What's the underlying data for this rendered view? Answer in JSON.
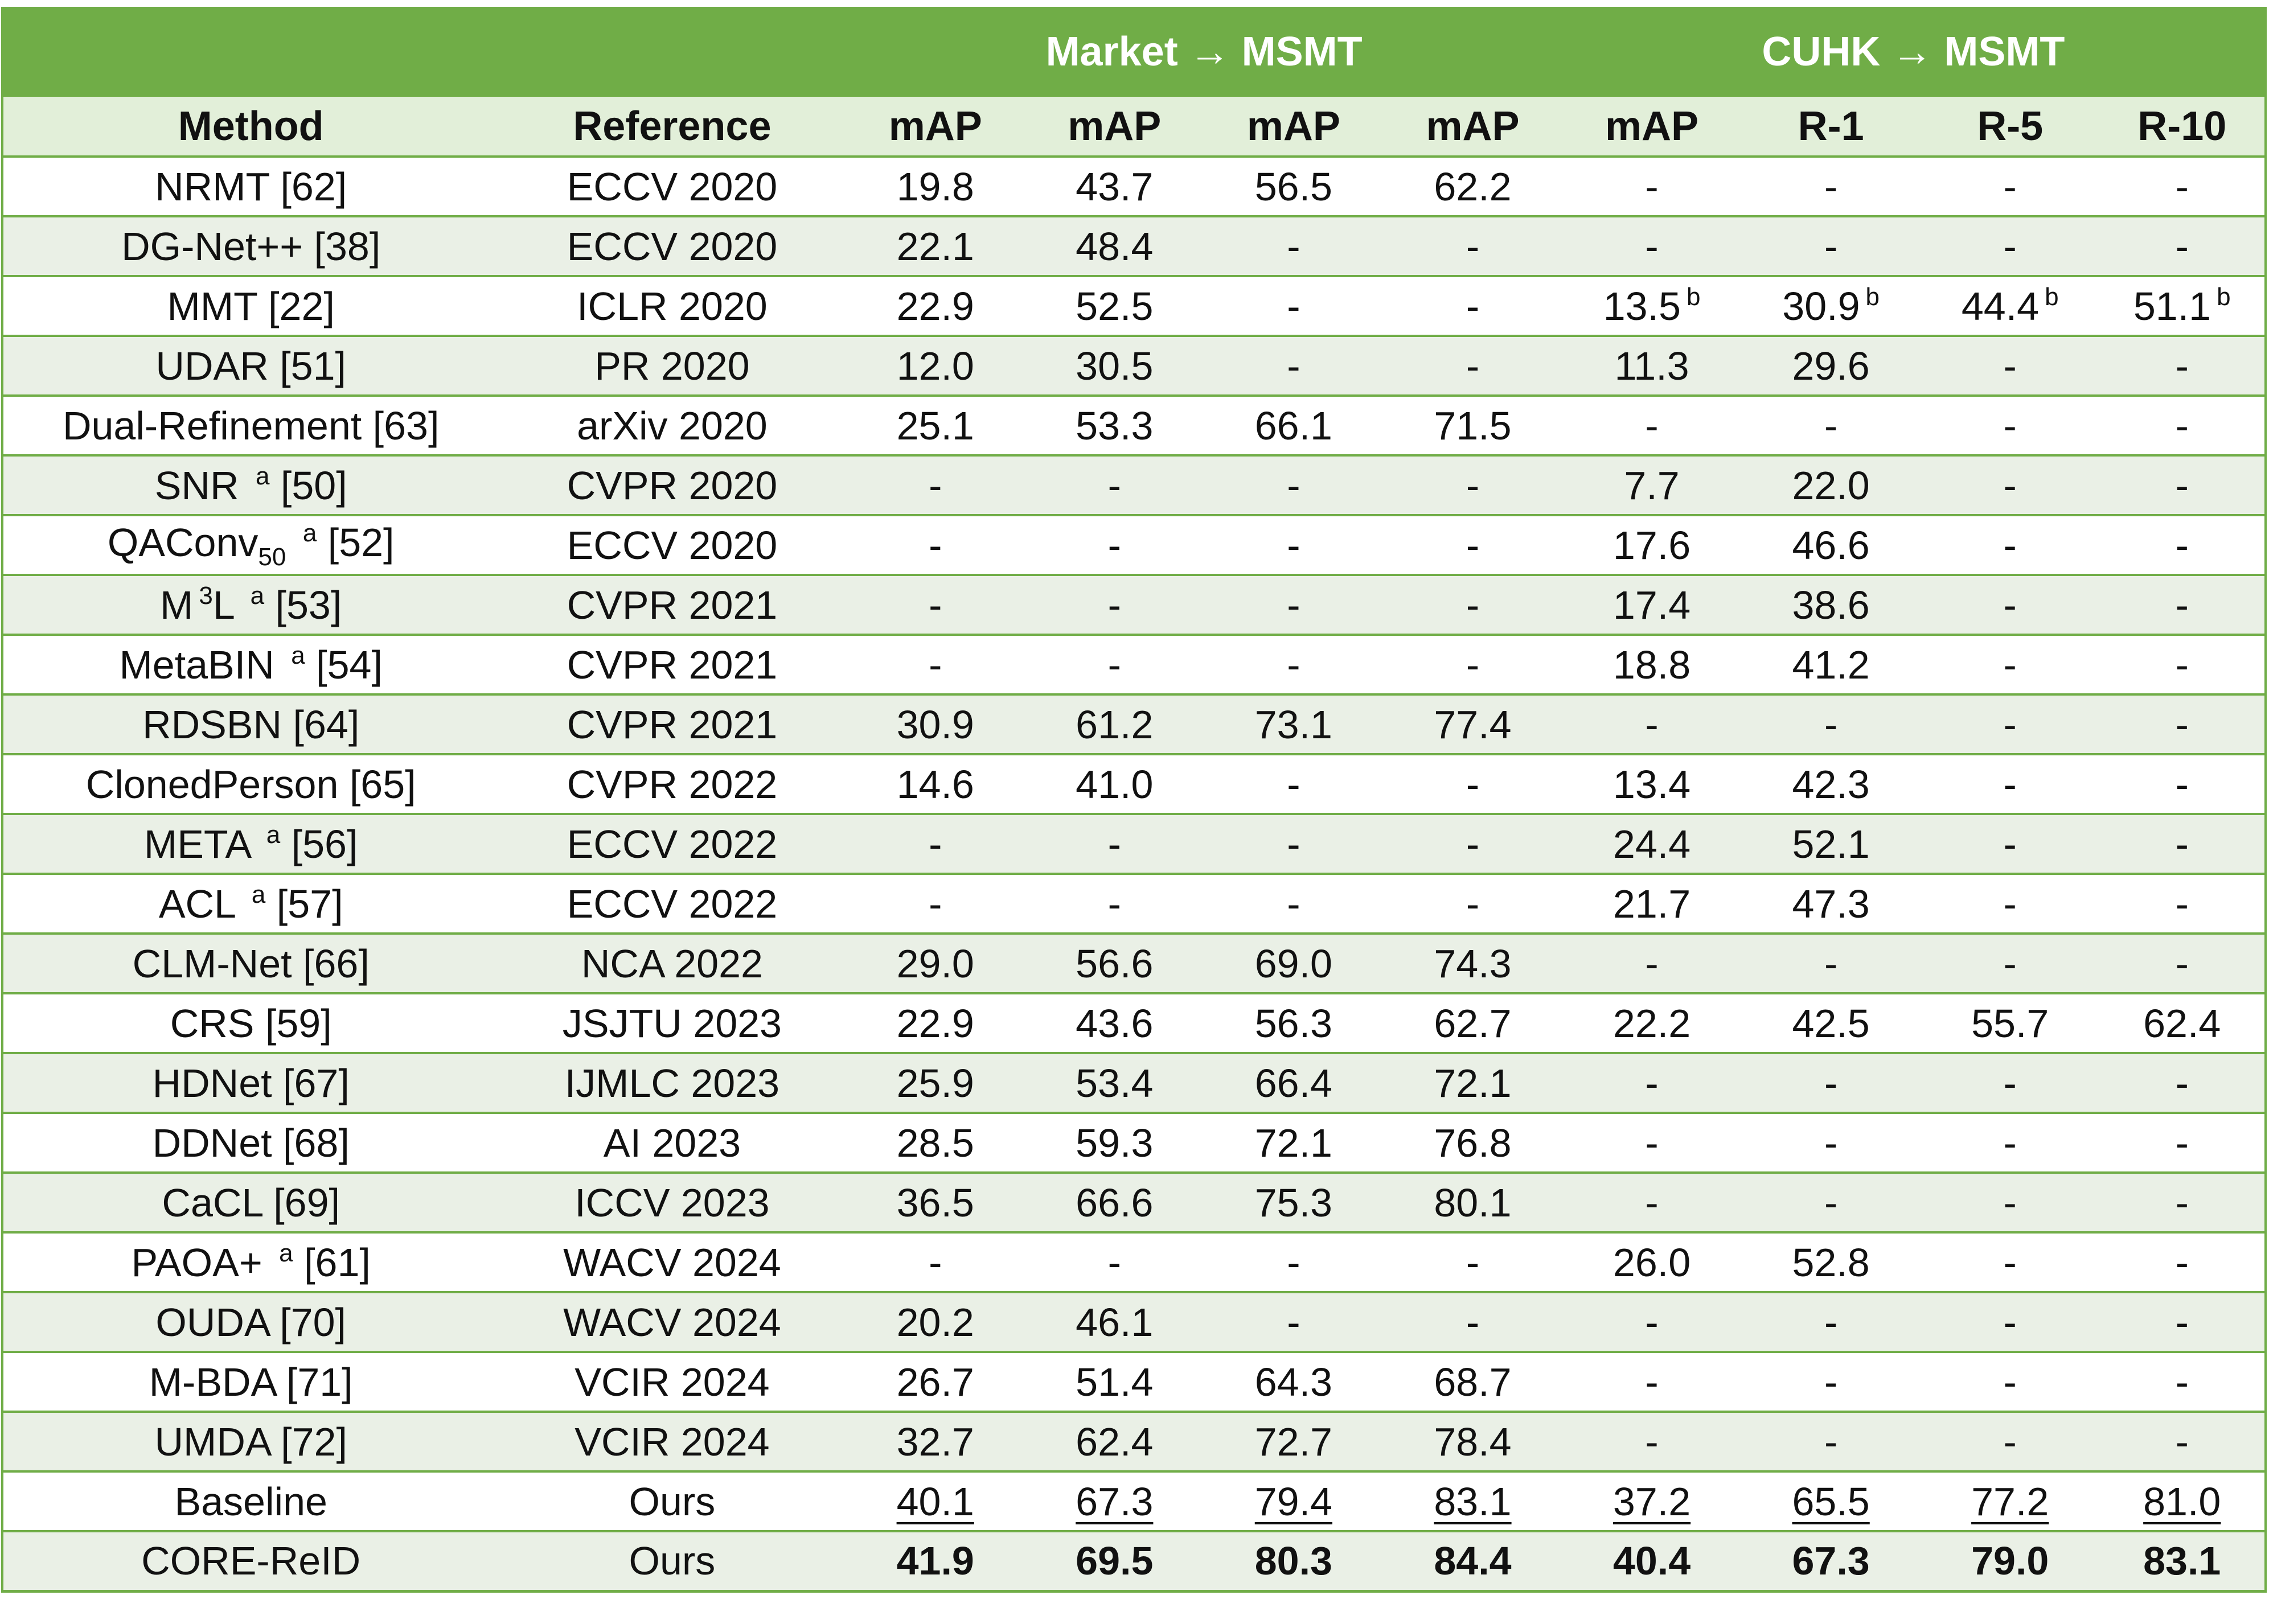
{
  "group_headers": {
    "market_msmt": "Market → MSMT",
    "cuhk_msmt": "CUHK → MSMT"
  },
  "column_headers": [
    "Method",
    "Reference",
    "mAP",
    "mAP",
    "mAP",
    "mAP",
    "mAP",
    "R-1",
    "R-5",
    "R-10"
  ],
  "rows": [
    {
      "method": [
        {
          "t": "NRMT [62]"
        }
      ],
      "reference": "ECCV 2020",
      "values": [
        "19.8",
        "43.7",
        "56.5",
        "62.2",
        "-",
        "-",
        "-",
        "-"
      ]
    },
    {
      "method": [
        {
          "t": "DG-Net++ [38]"
        }
      ],
      "reference": "ECCV 2020",
      "values": [
        "22.1",
        "48.4",
        "-",
        "-",
        "-",
        "-",
        "-",
        "-"
      ]
    },
    {
      "method": [
        {
          "t": "MMT [22]"
        }
      ],
      "reference": "ICLR 2020",
      "values": [
        "22.9",
        "52.5",
        "-",
        "-",
        "13.5",
        "30.9",
        "44.4",
        "51.1"
      ],
      "sups": [
        "",
        "",
        "",
        "",
        "b",
        "b",
        "b",
        "b"
      ]
    },
    {
      "method": [
        {
          "t": "UDAR [51]"
        }
      ],
      "reference": "PR 2020",
      "values": [
        "12.0",
        "30.5",
        "-",
        "-",
        "11.3",
        "29.6",
        "-",
        "-"
      ]
    },
    {
      "method": [
        {
          "t": "Dual-Refinement [63]"
        }
      ],
      "reference": "arXiv 2020",
      "values": [
        "25.1",
        "53.3",
        "66.1",
        "71.5",
        "-",
        "-",
        "-",
        "-"
      ]
    },
    {
      "method": [
        {
          "t": "SNR "
        },
        {
          "t": "a",
          "s": "sup"
        },
        {
          "t": " [50]"
        }
      ],
      "reference": "CVPR 2020",
      "values": [
        "-",
        "-",
        "-",
        "-",
        "7.7",
        "22.0",
        "-",
        "-"
      ]
    },
    {
      "method": [
        {
          "t": "QAConv"
        },
        {
          "t": "50",
          "s": "sub"
        },
        {
          "t": " "
        },
        {
          "t": "a",
          "s": "sup"
        },
        {
          "t": " [52]"
        }
      ],
      "reference": "ECCV 2020",
      "values": [
        "-",
        "-",
        "-",
        "-",
        "17.6",
        "46.6",
        "-",
        "-"
      ]
    },
    {
      "method": [
        {
          "t": "M"
        },
        {
          "t": "3",
          "s": "sup"
        },
        {
          "t": "L "
        },
        {
          "t": "a",
          "s": "sup"
        },
        {
          "t": " [53]"
        }
      ],
      "reference": "CVPR 2021",
      "values": [
        "-",
        "-",
        "-",
        "-",
        "17.4",
        "38.6",
        "-",
        "-"
      ]
    },
    {
      "method": [
        {
          "t": "MetaBIN "
        },
        {
          "t": "a",
          "s": "sup"
        },
        {
          "t": " [54]"
        }
      ],
      "reference": "CVPR 2021",
      "values": [
        "-",
        "-",
        "-",
        "-",
        "18.8",
        "41.2",
        "-",
        "-"
      ]
    },
    {
      "method": [
        {
          "t": "RDSBN [64]"
        }
      ],
      "reference": "CVPR 2021",
      "values": [
        "30.9",
        "61.2",
        "73.1",
        "77.4",
        "-",
        "-",
        "-",
        "-"
      ]
    },
    {
      "method": [
        {
          "t": "ClonedPerson [65]"
        }
      ],
      "reference": "CVPR 2022",
      "values": [
        "14.6",
        "41.0",
        "-",
        "-",
        "13.4",
        "42.3",
        "-",
        "-"
      ]
    },
    {
      "method": [
        {
          "t": "META "
        },
        {
          "t": "a",
          "s": "sup"
        },
        {
          "t": " [56]"
        }
      ],
      "reference": "ECCV 2022",
      "values": [
        "-",
        "-",
        "-",
        "-",
        "24.4",
        "52.1",
        "-",
        "-"
      ]
    },
    {
      "method": [
        {
          "t": "ACL "
        },
        {
          "t": "a",
          "s": "sup"
        },
        {
          "t": " [57]"
        }
      ],
      "reference": "ECCV 2022",
      "values": [
        "-",
        "-",
        "-",
        "-",
        "21.7",
        "47.3",
        "-",
        "-"
      ]
    },
    {
      "method": [
        {
          "t": "CLM-Net [66]"
        }
      ],
      "reference": "NCA 2022",
      "values": [
        "29.0",
        "56.6",
        "69.0",
        "74.3",
        "-",
        "-",
        "-",
        "-"
      ]
    },
    {
      "method": [
        {
          "t": "CRS [59]"
        }
      ],
      "reference": "JSJTU 2023",
      "values": [
        "22.9",
        "43.6",
        "56.3",
        "62.7",
        "22.2",
        "42.5",
        "55.7",
        "62.4"
      ]
    },
    {
      "method": [
        {
          "t": "HDNet [67]"
        }
      ],
      "reference": "IJMLC 2023",
      "values": [
        "25.9",
        "53.4",
        "66.4",
        "72.1",
        "-",
        "-",
        "-",
        "-"
      ]
    },
    {
      "method": [
        {
          "t": "DDNet [68]"
        }
      ],
      "reference": "AI 2023",
      "values": [
        "28.5",
        "59.3",
        "72.1",
        "76.8",
        "-",
        "-",
        "-",
        "-"
      ]
    },
    {
      "method": [
        {
          "t": "CaCL [69]"
        }
      ],
      "reference": "ICCV 2023",
      "values": [
        "36.5",
        "66.6",
        "75.3",
        "80.1",
        "-",
        "-",
        "-",
        "-"
      ]
    },
    {
      "method": [
        {
          "t": "PAOA+ "
        },
        {
          "t": "a",
          "s": "sup"
        },
        {
          "t": " [61]"
        }
      ],
      "reference": "WACV 2024",
      "values": [
        "-",
        "-",
        "-",
        "-",
        "26.0",
        "52.8",
        "-",
        "-"
      ]
    },
    {
      "method": [
        {
          "t": "OUDA [70]"
        }
      ],
      "reference": "WACV 2024",
      "values": [
        "20.2",
        "46.1",
        "-",
        "-",
        "-",
        "-",
        "-",
        "-"
      ]
    },
    {
      "method": [
        {
          "t": "M-BDA [71]"
        }
      ],
      "reference": "VCIR 2024",
      "values": [
        "26.7",
        "51.4",
        "64.3",
        "68.7",
        "-",
        "-",
        "-",
        "-"
      ]
    },
    {
      "method": [
        {
          "t": "UMDA [72]"
        }
      ],
      "reference": "VCIR 2024",
      "values": [
        "32.7",
        "62.4",
        "72.7",
        "78.4",
        "-",
        "-",
        "-",
        "-"
      ]
    },
    {
      "method": [
        {
          "t": "Baseline"
        }
      ],
      "reference": "Ours",
      "values": [
        "40.1",
        "67.3",
        "79.4",
        "83.1",
        "37.2",
        "65.5",
        "77.2",
        "81.0"
      ],
      "style": "underline"
    },
    {
      "method": [
        {
          "t": "CORE-ReID"
        }
      ],
      "reference": "Ours",
      "values": [
        "41.9",
        "69.5",
        "80.3",
        "84.4",
        "40.4",
        "67.3",
        "79.0",
        "83.1"
      ],
      "style": "bold"
    }
  ],
  "colors": {
    "header_green": "#70ad47",
    "header_text": "#ffffff",
    "subheader_bg": "#e2efd9",
    "stripe_bg": "#eaf0e6",
    "border": "#70ad47"
  }
}
